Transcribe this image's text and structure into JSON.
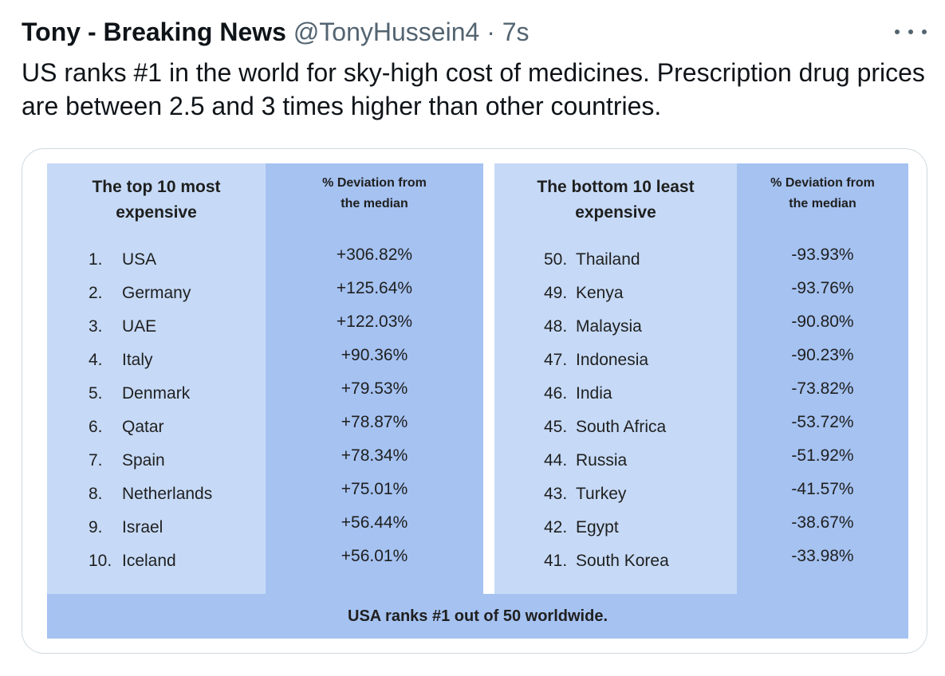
{
  "tweet": {
    "author_name": "Tony - Breaking News",
    "handle": "@TonyHussein4",
    "separator": "·",
    "time": "7s",
    "text": "US ranks #1 in the world for sky-high cost of medicines. Prescription drug prices are between 2.5 and 3 times higher than other countries."
  },
  "more_icon": "more-horizontal-icon",
  "image": {
    "left_panel": {
      "header_names": "The top 10 most\nexpensive",
      "header_values": "% Deviation from\nthe median",
      "rows": [
        {
          "rank": "1.",
          "country": "USA",
          "value": "+306.82%"
        },
        {
          "rank": "2.",
          "country": "Germany",
          "value": "+125.64%"
        },
        {
          "rank": "3.",
          "country": "UAE",
          "value": "+122.03%"
        },
        {
          "rank": "4.",
          "country": "Italy",
          "value": "+90.36%"
        },
        {
          "rank": "5.",
          "country": "Denmark",
          "value": "+79.53%"
        },
        {
          "rank": "6.",
          "country": "Qatar",
          "value": "+78.87%"
        },
        {
          "rank": "7.",
          "country": "Spain",
          "value": "+78.34%"
        },
        {
          "rank": "8.",
          "country": "Netherlands",
          "value": "+75.01%"
        },
        {
          "rank": "9.",
          "country": "Israel",
          "value": "+56.44%"
        },
        {
          "rank": "10.",
          "country": "Iceland",
          "value": "+56.01%"
        }
      ]
    },
    "right_panel": {
      "header_names": "The bottom 10 least\nexpensive",
      "header_values": "% Deviation from\nthe median",
      "rows": [
        {
          "rank": "50.",
          "country": "Thailand",
          "value": "-93.93%"
        },
        {
          "rank": "49.",
          "country": "Kenya",
          "value": "-93.76%"
        },
        {
          "rank": "48.",
          "country": "Malaysia",
          "value": "-90.80%"
        },
        {
          "rank": "47.",
          "country": "Indonesia",
          "value": "-90.23%"
        },
        {
          "rank": "46.",
          "country": "India",
          "value": "-73.82%"
        },
        {
          "rank": "45.",
          "country": "South Africa",
          "value": "-53.72%"
        },
        {
          "rank": "44.",
          "country": "Russia",
          "value": "-51.92%"
        },
        {
          "rank": "43.",
          "country": "Turkey",
          "value": "-41.57%"
        },
        {
          "rank": "42.",
          "country": "Egypt",
          "value": "-38.67%"
        },
        {
          "rank": "41.",
          "country": "South Korea",
          "value": "-33.98%"
        }
      ]
    },
    "footer": "USA ranks #1 out of 50 worldwide.",
    "colors": {
      "light_blue": "#c6daf7",
      "mid_blue": "#a5c2f1"
    }
  }
}
